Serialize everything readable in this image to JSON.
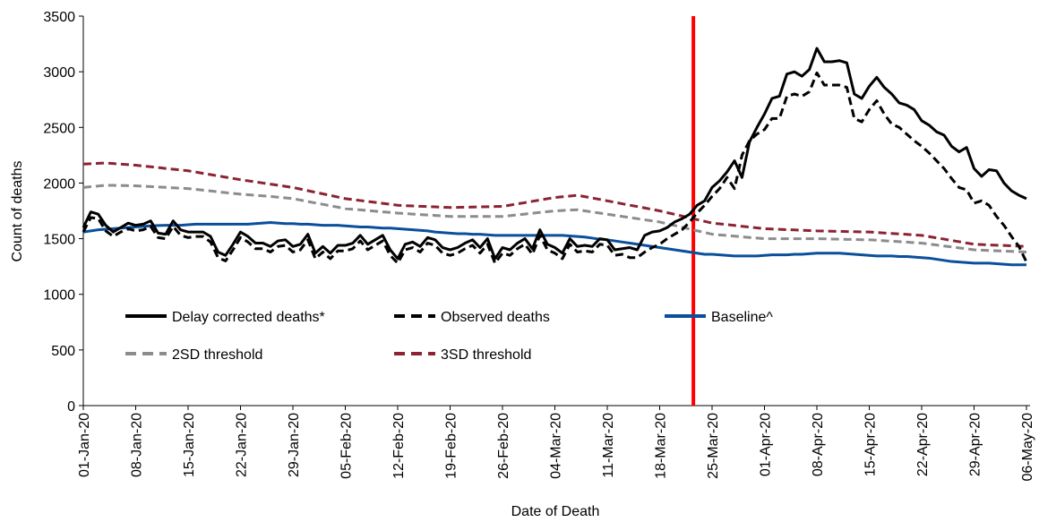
{
  "chart_data": {
    "type": "line",
    "x_label": "Date of Death",
    "y_label": "Count of deaths",
    "categories": [
      "01-Jan-20",
      null,
      null,
      null,
      null,
      null,
      null,
      "08-Jan-20",
      null,
      null,
      null,
      null,
      null,
      null,
      "15-Jan-20",
      null,
      null,
      null,
      null,
      null,
      null,
      "22-Jan-20",
      null,
      null,
      null,
      null,
      null,
      null,
      "29-Jan-20",
      null,
      null,
      null,
      null,
      null,
      null,
      "05-Feb-20",
      null,
      null,
      null,
      null,
      null,
      null,
      "12-Feb-20",
      null,
      null,
      null,
      null,
      null,
      null,
      "19-Feb-20",
      null,
      null,
      null,
      null,
      null,
      null,
      "26-Feb-20",
      null,
      null,
      null,
      null,
      null,
      null,
      "04-Mar-20",
      null,
      null,
      null,
      null,
      null,
      null,
      "11-Mar-20",
      null,
      null,
      null,
      null,
      null,
      null,
      "18-Mar-20",
      null,
      null,
      null,
      null,
      null,
      null,
      "25-Mar-20",
      null,
      null,
      null,
      null,
      null,
      null,
      "01-Apr-20",
      null,
      null,
      null,
      null,
      null,
      null,
      "08-Apr-20",
      null,
      null,
      null,
      null,
      null,
      null,
      "15-Apr-20",
      null,
      null,
      null,
      null,
      null,
      null,
      "22-Apr-20",
      null,
      null,
      null,
      null,
      null,
      null,
      "29-Apr-20",
      null,
      null,
      null,
      null,
      null,
      null,
      "06-May-20"
    ],
    "series": [
      {
        "name": "Delay corrected deaths*",
        "color": "#000000",
        "dash": false,
        "values": [
          1600,
          1740,
          1720,
          1620,
          1560,
          1600,
          1640,
          1620,
          1630,
          1660,
          1550,
          1540,
          1660,
          1580,
          1560,
          1560,
          1560,
          1520,
          1380,
          1350,
          1450,
          1560,
          1520,
          1460,
          1460,
          1430,
          1480,
          1490,
          1430,
          1450,
          1540,
          1370,
          1430,
          1370,
          1440,
          1440,
          1460,
          1530,
          1450,
          1490,
          1530,
          1400,
          1320,
          1450,
          1470,
          1430,
          1510,
          1490,
          1420,
          1400,
          1420,
          1460,
          1490,
          1420,
          1500,
          1320,
          1420,
          1400,
          1460,
          1500,
          1410,
          1580,
          1450,
          1420,
          1370,
          1500,
          1430,
          1440,
          1430,
          1500,
          1490,
          1400,
          1410,
          1420,
          1400,
          1530,
          1560,
          1570,
          1600,
          1650,
          1680,
          1720,
          1800,
          1840,
          1960,
          2020,
          2100,
          2200,
          2050,
          2370,
          2500,
          2620,
          2760,
          2780,
          2980,
          3000,
          2960,
          3020,
          3210,
          3090,
          3090,
          3100,
          3080,
          2800,
          2760,
          2870,
          2950,
          2860,
          2800,
          2720,
          2700,
          2660,
          2560,
          2520,
          2460,
          2430,
          2330,
          2280,
          2320,
          2130,
          2060,
          2120,
          2110,
          2000,
          1930,
          1890,
          1860
        ]
      },
      {
        "name": "Observed deaths",
        "color": "#000000",
        "dash": true,
        "values": [
          1560,
          1690,
          1680,
          1570,
          1520,
          1560,
          1590,
          1570,
          1580,
          1610,
          1510,
          1500,
          1610,
          1530,
          1510,
          1520,
          1520,
          1470,
          1330,
          1300,
          1400,
          1510,
          1470,
          1410,
          1410,
          1380,
          1430,
          1440,
          1380,
          1400,
          1490,
          1320,
          1380,
          1320,
          1390,
          1390,
          1410,
          1480,
          1400,
          1440,
          1480,
          1350,
          1280,
          1400,
          1420,
          1380,
          1460,
          1440,
          1370,
          1350,
          1370,
          1410,
          1440,
          1370,
          1450,
          1280,
          1370,
          1350,
          1410,
          1450,
          1360,
          1530,
          1400,
          1370,
          1320,
          1450,
          1380,
          1390,
          1380,
          1450,
          1440,
          1350,
          1360,
          1330,
          1330,
          1380,
          1420,
          1450,
          1500,
          1540,
          1580,
          1650,
          1730,
          1800,
          1880,
          1950,
          2050,
          1950,
          2250,
          2380,
          2440,
          2480,
          2580,
          2580,
          2780,
          2800,
          2780,
          2820,
          2990,
          2880,
          2880,
          2880,
          2860,
          2580,
          2550,
          2660,
          2740,
          2620,
          2530,
          2500,
          2440,
          2380,
          2330,
          2270,
          2200,
          2130,
          2040,
          1960,
          1940,
          1820,
          1840,
          1800,
          1700,
          1620,
          1520,
          1430,
          1290
        ]
      },
      {
        "name": "Baseline^",
        "color": "#0b4f9c",
        "dash": false,
        "values": [
          1560,
          1570,
          1580,
          1585,
          1590,
          1595,
          1600,
          1605,
          1610,
          1615,
          1618,
          1620,
          1620,
          1620,
          1625,
          1630,
          1630,
          1630,
          1630,
          1630,
          1630,
          1630,
          1630,
          1635,
          1640,
          1645,
          1640,
          1635,
          1635,
          1630,
          1630,
          1625,
          1620,
          1620,
          1620,
          1615,
          1610,
          1605,
          1605,
          1600,
          1595,
          1595,
          1590,
          1585,
          1580,
          1575,
          1570,
          1560,
          1555,
          1550,
          1545,
          1545,
          1540,
          1540,
          1535,
          1530,
          1530,
          1530,
          1530,
          1530,
          1530,
          1530,
          1530,
          1530,
          1530,
          1525,
          1520,
          1515,
          1505,
          1495,
          1490,
          1480,
          1470,
          1460,
          1450,
          1440,
          1430,
          1420,
          1410,
          1400,
          1390,
          1380,
          1370,
          1360,
          1360,
          1355,
          1350,
          1345,
          1345,
          1345,
          1345,
          1350,
          1355,
          1355,
          1355,
          1360,
          1360,
          1365,
          1370,
          1370,
          1370,
          1370,
          1365,
          1360,
          1355,
          1350,
          1345,
          1345,
          1345,
          1340,
          1340,
          1335,
          1330,
          1325,
          1315,
          1305,
          1295,
          1290,
          1285,
          1280,
          1280,
          1280,
          1275,
          1270,
          1265,
          1265,
          1265
        ]
      },
      {
        "name": "2SD threshold",
        "color": "#8c8c8c",
        "dash": true,
        "values": [
          1960,
          1967,
          1973,
          1980,
          1979,
          1978,
          1976,
          1975,
          1971,
          1968,
          1964,
          1961,
          1957,
          1954,
          1950,
          1943,
          1936,
          1929,
          1921,
          1914,
          1907,
          1900,
          1895,
          1890,
          1885,
          1880,
          1873,
          1867,
          1860,
          1847,
          1834,
          1821,
          1809,
          1796,
          1783,
          1770,
          1764,
          1759,
          1753,
          1747,
          1741,
          1736,
          1730,
          1726,
          1721,
          1717,
          1713,
          1709,
          1704,
          1700,
          1700,
          1700,
          1700,
          1700,
          1700,
          1700,
          1700,
          1707,
          1714,
          1721,
          1729,
          1736,
          1743,
          1750,
          1753,
          1757,
          1760,
          1750,
          1740,
          1730,
          1720,
          1710,
          1700,
          1690,
          1680,
          1670,
          1660,
          1650,
          1634,
          1619,
          1603,
          1587,
          1571,
          1556,
          1540,
          1534,
          1529,
          1523,
          1517,
          1511,
          1506,
          1500,
          1500,
          1500,
          1500,
          1500,
          1500,
          1500,
          1500,
          1499,
          1497,
          1496,
          1494,
          1493,
          1491,
          1490,
          1486,
          1481,
          1477,
          1473,
          1469,
          1464,
          1460,
          1451,
          1443,
          1434,
          1426,
          1417,
          1409,
          1400,
          1397,
          1394,
          1391,
          1389,
          1386,
          1383,
          1380
        ]
      },
      {
        "name": "3SD threshold",
        "color": "#8b2332",
        "dash": true,
        "values": [
          2170,
          2173,
          2177,
          2180,
          2175,
          2170,
          2165,
          2160,
          2153,
          2146,
          2139,
          2131,
          2124,
          2117,
          2110,
          2099,
          2087,
          2076,
          2064,
          2053,
          2041,
          2030,
          2020,
          2010,
          2000,
          1990,
          1980,
          1970,
          1960,
          1946,
          1931,
          1917,
          1903,
          1889,
          1874,
          1860,
          1851,
          1843,
          1834,
          1826,
          1817,
          1809,
          1800,
          1797,
          1794,
          1791,
          1789,
          1786,
          1783,
          1780,
          1781,
          1783,
          1784,
          1786,
          1787,
          1789,
          1790,
          1801,
          1813,
          1824,
          1836,
          1847,
          1859,
          1870,
          1877,
          1883,
          1890,
          1878,
          1865,
          1853,
          1840,
          1827,
          1814,
          1801,
          1789,
          1776,
          1763,
          1750,
          1734,
          1719,
          1703,
          1687,
          1671,
          1656,
          1640,
          1633,
          1626,
          1619,
          1611,
          1604,
          1597,
          1590,
          1587,
          1584,
          1581,
          1579,
          1576,
          1573,
          1570,
          1569,
          1567,
          1566,
          1564,
          1563,
          1561,
          1560,
          1556,
          1551,
          1547,
          1543,
          1539,
          1534,
          1530,
          1519,
          1507,
          1496,
          1484,
          1473,
          1461,
          1450,
          1447,
          1444,
          1441,
          1439,
          1436,
          1433,
          1430
        ]
      }
    ],
    "vline": {
      "at": 81.5,
      "color": "#ff0000"
    },
    "ylim": [
      0,
      3500
    ],
    "yticks": [
      0,
      500,
      1000,
      1500,
      2000,
      2500,
      3000,
      3500
    ],
    "grid": false
  }
}
